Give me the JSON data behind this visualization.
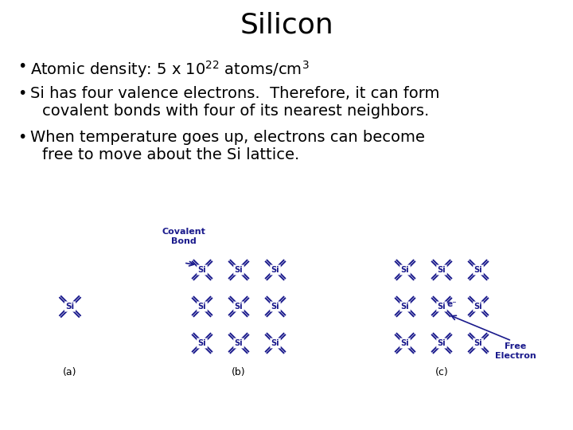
{
  "title": "Silicon",
  "title_fontsize": 26,
  "background_color": "#ffffff",
  "text_color": "#000000",
  "diagram_color": "#1a1a8c",
  "bullet_fontsize": 14,
  "fig_width": 7.2,
  "fig_height": 5.4,
  "fig_dpi": 100,
  "bullet1": "Atomic density: 5 x 10$^{22}$ atoms/cm$^3$",
  "bullet2_line1": "Si has four valence electrons.  Therefore, it can form",
  "bullet2_line2": "covalent bonds with four of its nearest neighbors.",
  "bullet3_line1": "When temperature goes up, electrons can become",
  "bullet3_line2": "free to move about the Si lattice.",
  "label_a": "(a)",
  "label_b": "(b)",
  "label_c": "(c)",
  "covalent_bond_label": "Covalent\nBond",
  "free_electron_label": "Free\nElectron",
  "e_minus": "e⁻"
}
